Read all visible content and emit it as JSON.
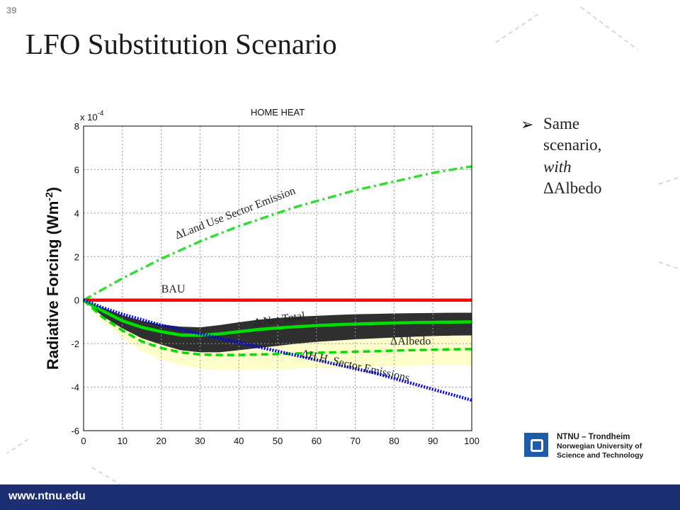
{
  "slide": {
    "number": "39",
    "title": "LFO Substitution Scenario"
  },
  "bullet": {
    "arrow": "➢",
    "line1": "Same",
    "line2": "scenario,",
    "line3": "with",
    "line4": "ΔAlbedo"
  },
  "logo": {
    "line1": "NTNU – Trondheim",
    "line2": "Norwegian University of",
    "line3": "Science and Technology"
  },
  "footer": {
    "url": "www.ntnu.edu"
  },
  "colors": {
    "footer": "#1c2f73",
    "bau": "#ff0000",
    "net": "#00dd00",
    "albedo": "#00dd00",
    "landuse": "#33dd33",
    "hh": "#0000ee",
    "band_dark": "#2f2f2f",
    "band_light": "#ffffcc"
  },
  "chart_data": {
    "type": "line",
    "title": "HOME HEAT",
    "xlabel": "",
    "ylabel": "Radiative Forcing (Wm-2)",
    "scale_note": "x 10-4",
    "xlim": [
      0,
      100
    ],
    "ylim": [
      -6,
      8
    ],
    "xticks": [
      0,
      10,
      20,
      30,
      40,
      50,
      60,
      70,
      80,
      90,
      100
    ],
    "yticks": [
      -6,
      -4,
      -2,
      0,
      2,
      4,
      6,
      8
    ],
    "grid": true,
    "x": [
      0,
      5,
      10,
      15,
      20,
      25,
      30,
      35,
      40,
      45,
      50,
      55,
      60,
      65,
      70,
      75,
      80,
      85,
      90,
      95,
      100
    ],
    "series": [
      {
        "name": "ΔLand Use Sector Emission",
        "style": "dash-dot",
        "values": [
          0,
          0.5,
          1.0,
          1.45,
          1.9,
          2.3,
          2.7,
          3.05,
          3.4,
          3.7,
          4.0,
          4.3,
          4.55,
          4.8,
          5.05,
          5.25,
          5.45,
          5.65,
          5.85,
          6.0,
          6.15
        ]
      },
      {
        "name": "BAU",
        "style": "solid",
        "values": [
          0,
          0,
          0,
          0,
          0,
          0,
          0,
          0,
          0,
          0,
          0,
          0,
          0,
          0,
          0,
          0,
          0,
          0,
          0,
          0,
          0
        ]
      },
      {
        "name": "Δ Net Total",
        "style": "solid",
        "values": [
          0,
          -0.5,
          -0.95,
          -1.25,
          -1.45,
          -1.6,
          -1.62,
          -1.55,
          -1.45,
          -1.35,
          -1.28,
          -1.22,
          -1.17,
          -1.13,
          -1.1,
          -1.07,
          -1.05,
          -1.03,
          -1.02,
          -1.01,
          -1.0
        ]
      },
      {
        "name": "ΔAlbedo",
        "style": "dashed",
        "values": [
          0,
          -0.8,
          -1.4,
          -1.9,
          -2.2,
          -2.4,
          -2.5,
          -2.52,
          -2.52,
          -2.5,
          -2.48,
          -2.45,
          -2.42,
          -2.4,
          -2.37,
          -2.35,
          -2.32,
          -2.3,
          -2.28,
          -2.26,
          -2.25
        ]
      },
      {
        "name": "ΔH.H. Sector Emissions",
        "style": "dotted",
        "values": [
          0,
          -0.35,
          -0.65,
          -0.9,
          -1.15,
          -1.35,
          -1.55,
          -1.75,
          -1.95,
          -2.15,
          -2.35,
          -2.55,
          -2.75,
          -2.95,
          -3.15,
          -3.35,
          -3.6,
          -3.85,
          -4.1,
          -4.35,
          -4.6
        ]
      }
    ],
    "bands": [
      {
        "kind": "light",
        "upper": [
          0,
          -0.5,
          -0.9,
          -1.2,
          -1.45,
          -1.6,
          -1.7,
          -1.7,
          -1.65,
          -1.6,
          -1.55,
          -1.5,
          -1.45,
          -1.42,
          -1.4,
          -1.38,
          -1.36,
          -1.35,
          -1.35,
          -1.35,
          -1.35
        ],
        "lower": [
          0,
          -1.0,
          -1.75,
          -2.35,
          -2.75,
          -3.0,
          -3.15,
          -3.2,
          -3.22,
          -3.2,
          -3.18,
          -3.15,
          -3.12,
          -3.1,
          -3.08,
          -3.06,
          -3.04,
          -3.02,
          -3.0,
          -3.0,
          -3.0
        ]
      },
      {
        "kind": "dark",
        "upper": [
          0,
          -0.35,
          -0.7,
          -0.95,
          -1.12,
          -1.22,
          -1.25,
          -1.15,
          -1.02,
          -0.9,
          -0.82,
          -0.76,
          -0.72,
          -0.68,
          -0.65,
          -0.63,
          -0.61,
          -0.6,
          -0.59,
          -0.58,
          -0.58
        ],
        "lower": [
          0,
          -0.75,
          -1.3,
          -1.75,
          -2.05,
          -2.3,
          -2.4,
          -2.4,
          -2.3,
          -2.2,
          -2.1,
          -2.0,
          -1.92,
          -1.86,
          -1.8,
          -1.76,
          -1.72,
          -1.68,
          -1.65,
          -1.63,
          -1.62
        ]
      }
    ],
    "annotations": [
      {
        "text": "ΔLand Use Sector Emission",
        "x": 24,
        "y": 2.8,
        "angle": -21
      },
      {
        "text": "BAU",
        "x": 20,
        "y": 0.35,
        "angle": 0
      },
      {
        "text": "Δ Net Total",
        "x": 44,
        "y": -1.2,
        "angle": -8
      },
      {
        "text": "ΔAlbedo",
        "x": 79,
        "y": -2.05,
        "angle": 0
      },
      {
        "text": "ΔH.H. Sector Emissions",
        "x": 56,
        "y": -2.6,
        "angle": 13
      }
    ]
  }
}
